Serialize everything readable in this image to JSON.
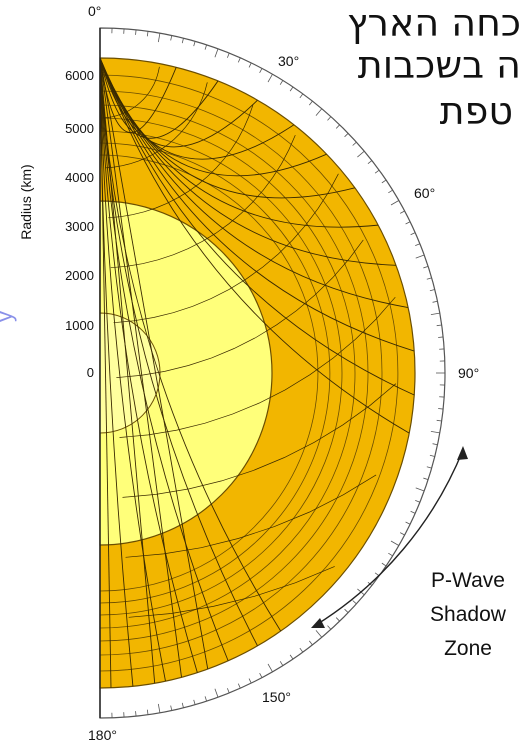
{
  "hebrew_caption": {
    "line1": "כחה הארץ",
    "line2": "ה בשכבות",
    "line3": "טפת"
  },
  "angle_labels": [
    "0°",
    "30°",
    "60°",
    "90°",
    "150°",
    "180°"
  ],
  "radius_axis": {
    "label": "Radius (km)",
    "ticks": [
      "6000",
      "5000",
      "4000",
      "3000",
      "2000",
      "1000",
      "0"
    ]
  },
  "shadow_zone": {
    "line1": "P-Wave",
    "line2": "Shadow",
    "line3": "Zone"
  },
  "layers": {
    "earth_radius_km": 6371,
    "outer_core_radius_km": 3480,
    "inner_core_radius_km": 1220
  },
  "colors": {
    "mantle": "#f2b600",
    "outer_core": "#ffff7a",
    "inner_core": "#ffff9e",
    "ray": "#3a2a00",
    "ring": "#ffffff",
    "blue_text": "#2a36d8"
  }
}
